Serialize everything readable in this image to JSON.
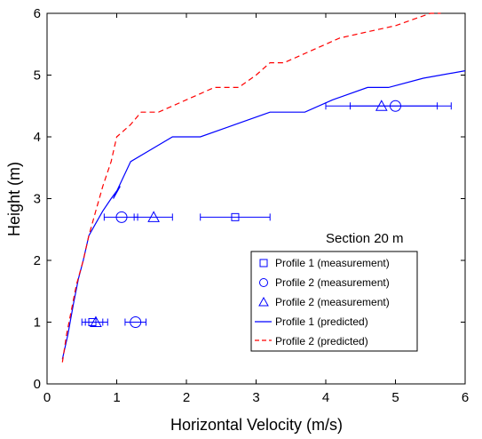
{
  "chart_data": {
    "type": "line",
    "xlabel": "Horizontal Velocity (m/s)",
    "ylabel": "Height (m)",
    "xlim": [
      0,
      6
    ],
    "ylim": [
      0,
      6
    ],
    "xticks": [
      "0",
      "1",
      "2",
      "3",
      "4",
      "5",
      "6"
    ],
    "yticks": [
      "0",
      "1",
      "2",
      "3",
      "4",
      "5",
      "6"
    ],
    "grid": false,
    "annotation": "Section 20 m",
    "legend": {
      "placement": "bottom-right",
      "entries": [
        "Profile 1 (measurement)",
        "Profile 2 (measurement)",
        "Profile 2 (measurement)",
        "Profile 1 (predicted)",
        "Profile 2 (predicted)"
      ]
    },
    "colors": {
      "profile1": "#0000ff",
      "profile2": "#ff0000"
    },
    "series": [
      {
        "name": "Profile 1 (measurement)",
        "marker": "square",
        "color": "#0000ff",
        "points": [
          {
            "x": 0.65,
            "y": 1.0,
            "xerr_low": 0.55,
            "xerr_high": 0.8
          },
          {
            "x": 2.7,
            "y": 2.7,
            "xerr_low": 2.2,
            "xerr_high": 3.2
          }
        ]
      },
      {
        "name": "Profile 2 (measurement)",
        "marker": "circle",
        "color": "#0000ff",
        "points": [
          {
            "x": 1.27,
            "y": 1.0,
            "xerr_low": 1.12,
            "xerr_high": 1.42
          },
          {
            "x": 1.07,
            "y": 2.7,
            "xerr_low": 0.82,
            "xerr_high": 1.3
          },
          {
            "x": 5.0,
            "y": 4.5,
            "xerr_low": 4.35,
            "xerr_high": 5.8
          }
        ]
      },
      {
        "name": "Profile 2 (measurement)",
        "marker": "triangle",
        "color": "#0000ff",
        "points": [
          {
            "x": 0.7,
            "y": 1.0,
            "xerr_low": 0.5,
            "xerr_high": 0.87
          },
          {
            "x": 1.53,
            "y": 2.7,
            "xerr_low": 1.25,
            "xerr_high": 1.8
          },
          {
            "x": 4.8,
            "y": 4.5,
            "xerr_low": 4.0,
            "xerr_high": 5.6
          }
        ]
      },
      {
        "name": "Profile 1 (predicted)",
        "style": "solid",
        "color": "#0000ff",
        "x": [
          0.22,
          0.3,
          0.38,
          0.45,
          0.52,
          0.6,
          0.7,
          0.8,
          0.92,
          1.05,
          0.95,
          1.2,
          1.5,
          1.8,
          2.2,
          2.7,
          3.2,
          3.7,
          4.1,
          4.6,
          4.9,
          5.4,
          6.0
        ],
        "y": [
          0.4,
          0.8,
          1.3,
          1.7,
          2.0,
          2.4,
          2.6,
          2.8,
          3.0,
          3.2,
          3.0,
          3.6,
          3.8,
          4.0,
          4.0,
          4.2,
          4.4,
          4.4,
          4.6,
          4.8,
          4.8,
          4.95,
          5.07
        ]
      },
      {
        "name": "Profile 2 (predicted)",
        "style": "dashed",
        "color": "#ff0000",
        "x": [
          0.22,
          0.28,
          0.35,
          0.42,
          0.52,
          0.6,
          0.7,
          0.8,
          0.92,
          1.0,
          1.1,
          1.2,
          1.35,
          1.45,
          1.6,
          1.8,
          2.0,
          2.2,
          2.4,
          2.6,
          2.75,
          3.0,
          3.2,
          3.4,
          3.6,
          3.8,
          4.2,
          4.6,
          5.0,
          5.5,
          5.65
        ],
        "y": [
          0.35,
          0.8,
          1.2,
          1.6,
          2.0,
          2.4,
          2.8,
          3.2,
          3.6,
          4.0,
          4.1,
          4.2,
          4.4,
          4.4,
          4.4,
          4.5,
          4.6,
          4.7,
          4.8,
          4.8,
          4.8,
          5.0,
          5.2,
          5.2,
          5.3,
          5.4,
          5.6,
          5.7,
          5.8,
          6.0,
          6.0
        ]
      }
    ]
  }
}
